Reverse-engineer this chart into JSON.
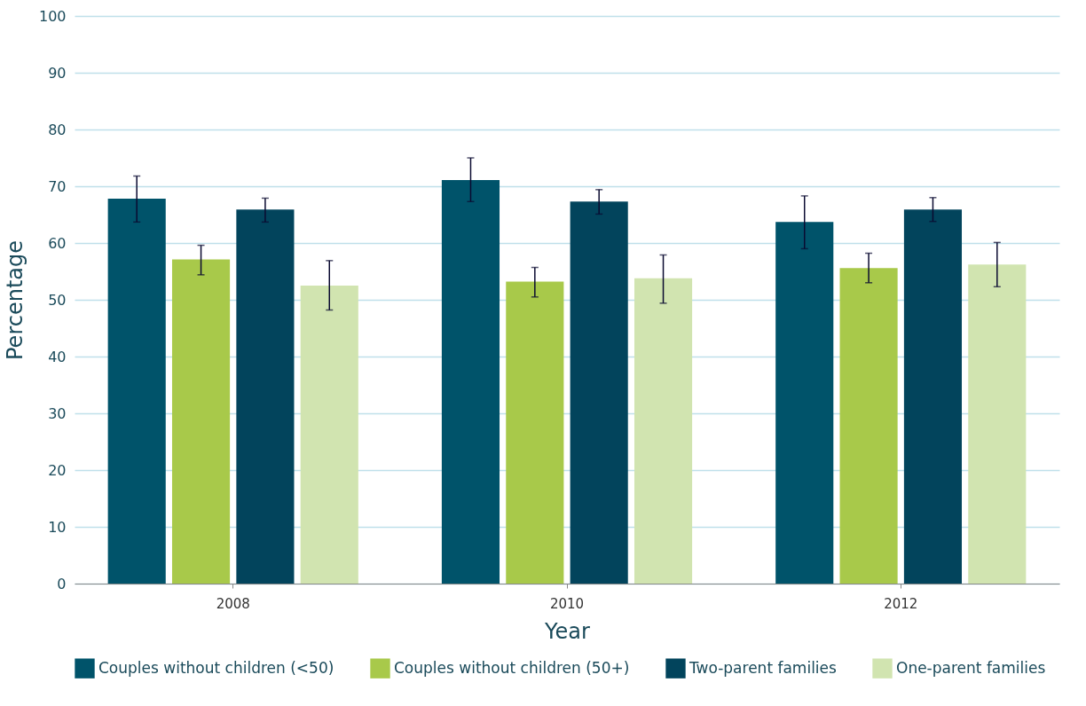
{
  "chart_data": {
    "type": "bar",
    "xlabel": "Year",
    "ylabel": "Percentage",
    "categories": [
      "2008",
      "2010",
      "2012"
    ],
    "ylim": [
      0,
      100
    ],
    "yticks": [
      0,
      10,
      20,
      30,
      40,
      50,
      60,
      70,
      80,
      90,
      100
    ],
    "grid": "y",
    "legend": "bottom",
    "series": [
      {
        "name": "Couples without children (<50)",
        "color": "#00536a",
        "values": [
          67.8,
          71.1,
          63.7
        ],
        "errors": [
          [
            63.7,
            71.8
          ],
          [
            67.3,
            75.0
          ],
          [
            59.0,
            68.3
          ]
        ]
      },
      {
        "name": "Couples without children (50+)",
        "color": "#a8c94a",
        "values": [
          57.1,
          53.2,
          55.6
        ],
        "errors": [
          [
            54.4,
            59.6
          ],
          [
            50.5,
            55.7
          ],
          [
            53.0,
            58.2
          ]
        ]
      },
      {
        "name": "Two-parent families",
        "color": "#02445c",
        "values": [
          65.9,
          67.3,
          65.9
        ],
        "errors": [
          [
            63.7,
            67.9
          ],
          [
            65.1,
            69.4
          ],
          [
            63.8,
            68.0
          ]
        ]
      },
      {
        "name": "One-parent families",
        "color": "#d1e4b0",
        "values": [
          52.5,
          53.8,
          56.2
        ],
        "errors": [
          [
            48.2,
            56.9
          ],
          [
            49.4,
            57.9
          ],
          [
            52.3,
            60.1
          ]
        ]
      }
    ]
  }
}
